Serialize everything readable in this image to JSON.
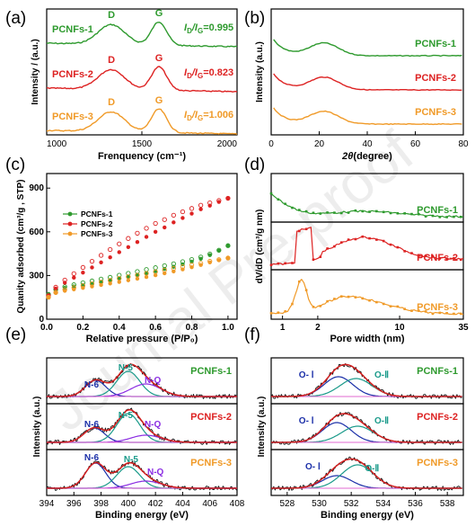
{
  "panel_labels": [
    "(a)",
    "(b)",
    "(c)",
    "(d)",
    "(e)",
    "(f)"
  ],
  "watermark": "Journal Pre-proof",
  "colors": {
    "PCNFs-1": "#2e9a2e",
    "PCNFs-2": "#dd2222",
    "PCNFs-3": "#f09a28"
  },
  "chart_data": [
    {
      "type": "line",
      "panel": "(a)",
      "xlabel": "Frenquency (cm⁻¹)",
      "ylabel": "Intensity / (a.u.)",
      "xlim": [
        1000,
        2000
      ],
      "xticks": [
        "1000",
        "1500",
        "2000"
      ],
      "series": [
        {
          "name": "PCNFs-1",
          "ratio": "I₄/Iᴳ=0.995",
          "ratio_text": "=0.995",
          "d_peak": 1340,
          "g_peak": 1590
        },
        {
          "name": "PCNFs-2",
          "ratio_text": "=0.823",
          "d_peak": 1340,
          "g_peak": 1590
        },
        {
          "name": "PCNFs-3",
          "ratio_text": "=1.006",
          "d_peak": 1340,
          "g_peak": 1590
        }
      ],
      "peak_labels": [
        "D",
        "G"
      ],
      "ratio_prefix_main": "I",
      "ratio_prefix_sub1": "D",
      "ratio_prefix_mid": "/I",
      "ratio_prefix_sub2": "G"
    },
    {
      "type": "line",
      "panel": "(b)",
      "xlabel": "(degree)",
      "xlabel_theta": "2θ",
      "ylabel": "Intensity (a.u.)",
      "xlim": [
        0,
        80
      ],
      "xticks": [
        "0",
        "20",
        "40",
        "60",
        "80"
      ],
      "peak_center_deg": 22,
      "series": [
        {
          "name": "PCNFs-1"
        },
        {
          "name": "PCNFs-2"
        },
        {
          "name": "PCNFs-3"
        }
      ]
    },
    {
      "type": "scatter",
      "panel": "(c)",
      "xlabel": "Relative pressure (P/P₀)",
      "ylabel": "Quanity adsorbed (cm³/g , STP)",
      "xlim": [
        0,
        1.05
      ],
      "ylim": [
        0,
        1000
      ],
      "xticks": [
        "0.0",
        "0.2",
        "0.4",
        "0.6",
        "0.8",
        "1.0"
      ],
      "yticks": [
        "0",
        "300",
        "600",
        "900"
      ],
      "legend": "upper-left",
      "series": [
        {
          "name": "PCNFs-1",
          "x": [
            0.01,
            0.05,
            0.1,
            0.15,
            0.2,
            0.25,
            0.3,
            0.35,
            0.4,
            0.45,
            0.5,
            0.55,
            0.6,
            0.65,
            0.7,
            0.75,
            0.8,
            0.85,
            0.9,
            0.95,
            1.0
          ],
          "y": [
            170,
            200,
            215,
            225,
            235,
            245,
            255,
            265,
            278,
            290,
            302,
            316,
            330,
            345,
            360,
            377,
            395,
            415,
            440,
            470,
            505
          ]
        },
        {
          "name": "PCNFs-2",
          "x": [
            0.01,
            0.05,
            0.1,
            0.15,
            0.2,
            0.25,
            0.3,
            0.35,
            0.4,
            0.45,
            0.5,
            0.55,
            0.6,
            0.65,
            0.7,
            0.75,
            0.8,
            0.85,
            0.9,
            0.95,
            1.0
          ],
          "y": [
            160,
            210,
            250,
            285,
            320,
            355,
            390,
            425,
            460,
            495,
            530,
            565,
            600,
            630,
            665,
            695,
            725,
            755,
            780,
            805,
            830
          ]
        },
        {
          "name": "PCNFs-3",
          "x": [
            0.01,
            0.05,
            0.1,
            0.15,
            0.2,
            0.25,
            0.3,
            0.35,
            0.4,
            0.45,
            0.5,
            0.55,
            0.6,
            0.65,
            0.7,
            0.75,
            0.8,
            0.85,
            0.9,
            0.95,
            1.0
          ],
          "y": [
            150,
            180,
            195,
            205,
            215,
            225,
            235,
            245,
            256,
            267,
            278,
            290,
            302,
            315,
            328,
            342,
            357,
            372,
            390,
            405,
            420
          ]
        }
      ]
    },
    {
      "type": "line",
      "panel": "(d)",
      "xlabel": "Pore width (nm)",
      "ylabel": "dV/dD (cm³/g nm)",
      "xscale": "log",
      "xlim": [
        0.8,
        35
      ],
      "xticks": [
        "1",
        "2",
        "10",
        "35"
      ],
      "series": [
        {
          "name": "PCNFs-1"
        },
        {
          "name": "PCNFs-2"
        },
        {
          "name": "PCNFs-3"
        }
      ]
    },
    {
      "type": "line",
      "panel": "(e)",
      "xlabel": "Binding energy  (eV)",
      "ylabel": "Intensity (a.u.)",
      "xlim": [
        394,
        408
      ],
      "xticks": [
        "394",
        "396",
        "398",
        "400",
        "402",
        "404",
        "406",
        "408"
      ],
      "components": [
        "N-6",
        "N-5",
        "N-Q"
      ],
      "series": [
        {
          "name": "PCNFs-1"
        },
        {
          "name": "PCNFs-2"
        },
        {
          "name": "PCNFs-3"
        }
      ]
    },
    {
      "type": "line",
      "panel": "(f)",
      "xlabel": "Binding energy (eV)",
      "ylabel": "Intensity (a.u.)",
      "xlim": [
        527,
        539
      ],
      "xticks": [
        "528",
        "530",
        "532",
        "534",
        "536",
        "538"
      ],
      "components": [
        "O- Ⅰ",
        "O-Ⅱ"
      ],
      "series": [
        {
          "name": "PCNFs-1"
        },
        {
          "name": "PCNFs-2"
        },
        {
          "name": "PCNFs-3"
        }
      ]
    }
  ]
}
